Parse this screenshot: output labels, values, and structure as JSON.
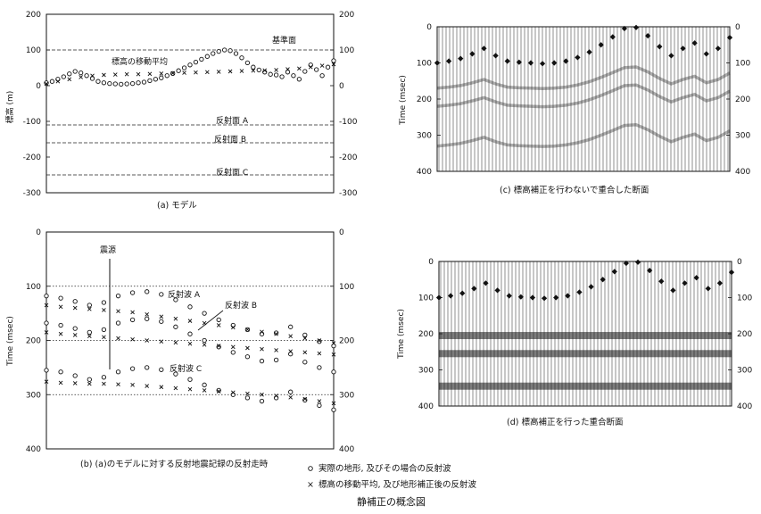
{
  "figure_title": "静補正の概念図",
  "legend": {
    "circle_label": "実際の地形, 及びその場合の反射波",
    "cross_label": "標高の移動平均, 及び地形補正後の反射波"
  },
  "chart_data": [
    {
      "id": "a",
      "type": "line",
      "caption": "(a) モデル",
      "ylabel": "標高 (m)",
      "ylim": [
        -300,
        200
      ],
      "yticks": [
        200,
        100,
        0,
        -100,
        -200,
        -300
      ],
      "grid": false,
      "annotations": {
        "datum": "基準面",
        "moving_avg": "標高の移動平均",
        "refl_a": "反射面 A",
        "refl_b": "反射面 B",
        "refl_c": "反射面 C"
      },
      "reference_lines": [
        100,
        -110,
        -160,
        -250
      ],
      "series": [
        {
          "marker": "circle",
          "x": [
            0,
            2,
            4,
            6,
            8,
            10,
            12,
            14,
            16,
            18,
            20,
            22,
            24,
            26,
            28,
            30,
            32,
            34,
            36,
            38,
            40,
            42,
            44,
            46,
            48,
            50,
            52,
            54,
            56,
            58,
            60,
            62,
            64,
            66,
            68,
            70,
            72,
            74,
            76,
            78,
            80,
            82,
            84,
            86,
            88,
            90,
            92,
            94,
            96,
            98,
            100
          ],
          "y": [
            8,
            12,
            18,
            25,
            33,
            40,
            36,
            28,
            20,
            12,
            8,
            6,
            5,
            4,
            5,
            6,
            8,
            10,
            14,
            18,
            22,
            28,
            34,
            42,
            50,
            58,
            66,
            74,
            82,
            90,
            96,
            100,
            98,
            90,
            78,
            64,
            52,
            44,
            38,
            32,
            30,
            25,
            38,
            28,
            18,
            40,
            58,
            45,
            28,
            52,
            70
          ]
        },
        {
          "marker": "cross",
          "x": [
            0,
            4,
            8,
            12,
            16,
            20,
            24,
            28,
            32,
            36,
            40,
            44,
            48,
            52,
            56,
            60,
            64,
            68,
            72,
            76,
            80,
            84,
            88,
            92,
            96,
            100
          ],
          "y": [
            5,
            12,
            18,
            24,
            28,
            30,
            31,
            32,
            32,
            33,
            34,
            35,
            36,
            37,
            38,
            39,
            40,
            41,
            42,
            43,
            44,
            46,
            48,
            52,
            56,
            60
          ]
        }
      ]
    },
    {
      "id": "b",
      "type": "line",
      "caption": "(b) (a)のモデルに対する反射地震記録の反射走時",
      "ylabel": "Time (msec)",
      "ylim": [
        0,
        400
      ],
      "yticks": [
        0,
        100,
        200,
        300,
        400
      ],
      "grid": false,
      "annotations": {
        "source": "震源",
        "wave_a": "反射波 A",
        "wave_b": "反射波 B",
        "wave_c": "反射波 C"
      },
      "reference_lines": [
        100,
        200,
        300
      ],
      "series": [
        {
          "name": "反射波 A",
          "marker": "circle",
          "x": [
            0,
            5,
            10,
            15,
            20,
            25,
            30,
            35,
            40,
            45,
            50,
            55,
            60,
            65,
            70,
            75,
            80,
            85,
            90,
            95,
            100
          ],
          "y": [
            118,
            122,
            128,
            135,
            130,
            118,
            112,
            110,
            115,
            125,
            138,
            150,
            162,
            172,
            180,
            188,
            186,
            175,
            190,
            202,
            210
          ]
        },
        {
          "name": "反射波 A",
          "marker": "cross",
          "x": [
            0,
            5,
            10,
            15,
            20,
            25,
            30,
            35,
            40,
            45,
            50,
            55,
            60,
            65,
            70,
            75,
            80,
            85,
            90,
            95,
            100
          ],
          "y": [
            135,
            138,
            140,
            142,
            144,
            146,
            148,
            152,
            156,
            160,
            164,
            168,
            172,
            176,
            180,
            184,
            188,
            192,
            196,
            200,
            205
          ]
        },
        {
          "name": "反射波 B",
          "marker": "circle",
          "x": [
            0,
            5,
            10,
            15,
            20,
            25,
            30,
            35,
            40,
            45,
            50,
            55,
            60,
            65,
            70,
            75,
            80,
            85,
            90,
            95,
            100
          ],
          "y": [
            168,
            172,
            178,
            185,
            180,
            168,
            162,
            160,
            165,
            175,
            188,
            200,
            212,
            222,
            230,
            238,
            236,
            225,
            240,
            250,
            258
          ]
        },
        {
          "name": "反射波 B",
          "marker": "cross",
          "x": [
            0,
            5,
            10,
            15,
            20,
            25,
            30,
            35,
            40,
            45,
            50,
            55,
            60,
            65,
            70,
            75,
            80,
            85,
            90,
            95,
            100
          ],
          "y": [
            185,
            188,
            190,
            192,
            194,
            196,
            198,
            200,
            202,
            204,
            206,
            208,
            210,
            212,
            214,
            216,
            218,
            220,
            222,
            224,
            226
          ]
        },
        {
          "name": "反射波 C",
          "marker": "circle",
          "x": [
            0,
            5,
            10,
            15,
            20,
            25,
            30,
            35,
            40,
            45,
            50,
            55,
            60,
            65,
            70,
            75,
            80,
            85,
            90,
            95,
            100
          ],
          "y": [
            255,
            258,
            265,
            272,
            268,
            258,
            252,
            250,
            254,
            262,
            272,
            282,
            292,
            300,
            306,
            312,
            306,
            295,
            310,
            320,
            328
          ]
        },
        {
          "name": "反射波 C",
          "marker": "cross",
          "x": [
            0,
            5,
            10,
            15,
            20,
            25,
            30,
            35,
            40,
            45,
            50,
            55,
            60,
            65,
            70,
            75,
            80,
            85,
            90,
            95,
            100
          ],
          "y": [
            276,
            278,
            279,
            280,
            280,
            281,
            282,
            284,
            286,
            288,
            290,
            292,
            294,
            296,
            298,
            300,
            302,
            305,
            308,
            312,
            316
          ]
        }
      ]
    },
    {
      "id": "c",
      "type": "line",
      "caption": "(c) 標高補正を行わないで重合した断面",
      "ylabel": "Time (msec)",
      "ylim": [
        0,
        400
      ],
      "yticks": [
        0,
        100,
        200,
        300,
        400
      ],
      "series": [
        {
          "marker": "diamond",
          "x": [
            0,
            4,
            8,
            12,
            16,
            20,
            24,
            28,
            32,
            36,
            40,
            44,
            48,
            52,
            56,
            60,
            64,
            68,
            72,
            76,
            80,
            84,
            88,
            92,
            96,
            100
          ],
          "y": [
            100,
            95,
            88,
            75,
            60,
            80,
            95,
            98,
            100,
            102,
            100,
            95,
            85,
            70,
            50,
            28,
            5,
            2,
            25,
            55,
            80,
            60,
            45,
            75,
            60,
            30
          ]
        }
      ]
    },
    {
      "id": "d",
      "type": "line",
      "caption": "(d) 標高補正を行った重合断面",
      "ylabel": "Time (msec)",
      "ylim": [
        0,
        400
      ],
      "yticks": [
        0,
        100,
        200,
        300,
        400
      ],
      "series": [
        {
          "marker": "diamond",
          "x": [
            0,
            4,
            8,
            12,
            16,
            20,
            24,
            28,
            32,
            36,
            40,
            44,
            48,
            52,
            56,
            60,
            64,
            68,
            72,
            76,
            80,
            84,
            88,
            92,
            96,
            100
          ],
          "y": [
            100,
            95,
            88,
            75,
            60,
            80,
            95,
            98,
            100,
            102,
            100,
            95,
            85,
            70,
            50,
            28,
            5,
            2,
            25,
            55,
            80,
            60,
            45,
            75,
            60,
            30
          ]
        }
      ],
      "reflector_bands_msec": [
        205,
        255,
        345
      ]
    }
  ]
}
